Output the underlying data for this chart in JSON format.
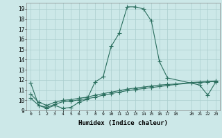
{
  "xlabel": "Humidex (Indice chaleur)",
  "bg_color": "#cce8e8",
  "grid_color": "#aacece",
  "line_color": "#2a6e5e",
  "xlim": [
    -0.5,
    23.5
  ],
  "ylim": [
    9.0,
    19.6
  ],
  "xticks": [
    0,
    1,
    2,
    3,
    4,
    5,
    6,
    7,
    8,
    9,
    10,
    11,
    12,
    13,
    14,
    15,
    16,
    17,
    18,
    20,
    21,
    22,
    23
  ],
  "yticks": [
    9,
    10,
    11,
    12,
    13,
    14,
    15,
    16,
    17,
    18,
    19
  ],
  "line1_x": [
    0,
    1,
    2,
    3,
    4,
    5,
    6,
    7,
    8,
    9,
    10,
    11,
    12,
    13,
    14,
    15,
    16,
    17,
    21,
    22,
    23
  ],
  "line1_y": [
    11.7,
    9.5,
    9.2,
    9.5,
    9.2,
    9.3,
    9.8,
    10.1,
    11.8,
    12.3,
    15.3,
    16.6,
    19.2,
    19.2,
    19.0,
    17.8,
    13.8,
    12.2,
    11.5,
    10.5,
    11.8
  ],
  "line2_x": [
    0,
    1,
    2,
    3,
    4,
    5,
    6,
    7,
    8,
    9,
    10,
    11,
    12,
    13,
    14,
    15,
    16,
    17,
    18,
    20,
    21,
    22,
    23
  ],
  "line2_y": [
    10.2,
    9.5,
    9.3,
    9.6,
    9.85,
    9.9,
    10.05,
    10.15,
    10.3,
    10.5,
    10.65,
    10.8,
    10.95,
    11.05,
    11.15,
    11.25,
    11.35,
    11.45,
    11.55,
    11.7,
    11.75,
    11.8,
    11.85
  ],
  "line3_x": [
    0,
    1,
    2,
    3,
    4,
    5,
    6,
    7,
    8,
    9,
    10,
    11,
    12,
    13,
    14,
    15,
    16,
    17,
    18,
    20,
    21,
    22,
    23
  ],
  "line3_y": [
    10.6,
    9.8,
    9.5,
    9.8,
    10.0,
    10.05,
    10.2,
    10.3,
    10.5,
    10.65,
    10.8,
    10.95,
    11.1,
    11.2,
    11.3,
    11.4,
    11.5,
    11.55,
    11.6,
    11.75,
    11.8,
    11.85,
    11.9
  ]
}
